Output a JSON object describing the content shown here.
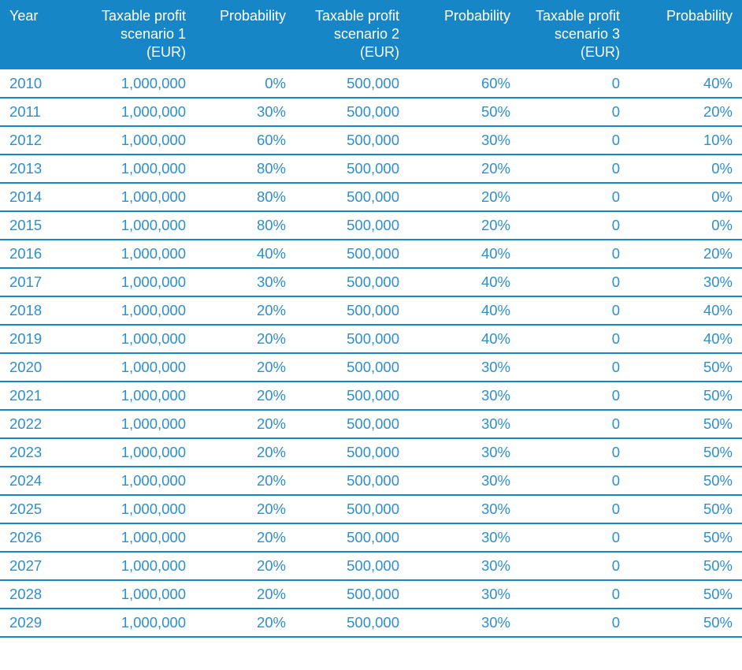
{
  "colors": {
    "header_bg": "#1786C7",
    "header_text": "#FFFFFF",
    "cell_text": "#2E8FCD",
    "row_line": "#1786C7",
    "background": "#FFFFFF"
  },
  "table": {
    "headers": [
      "Year",
      "Taxable profit\nscenario 1\n(EUR)",
      "Probability",
      "Taxable profit\nscenario 2\n(EUR)",
      "Probability",
      "Taxable profit\nscenario 3\n(EUR)",
      "Probability"
    ],
    "rows": [
      [
        "2010",
        "1,000,000",
        "0%",
        "500,000",
        "60%",
        "0",
        "40%"
      ],
      [
        "2011",
        "1,000,000",
        "30%",
        "500,000",
        "50%",
        "0",
        "20%"
      ],
      [
        "2012",
        "1,000,000",
        "60%",
        "500,000",
        "30%",
        "0",
        "10%"
      ],
      [
        "2013",
        "1,000,000",
        "80%",
        "500,000",
        "20%",
        "0",
        "0%"
      ],
      [
        "2014",
        "1,000,000",
        "80%",
        "500,000",
        "20%",
        "0",
        "0%"
      ],
      [
        "2015",
        "1,000,000",
        "80%",
        "500,000",
        "20%",
        "0",
        "0%"
      ],
      [
        "2016",
        "1,000,000",
        "40%",
        "500,000",
        "40%",
        "0",
        "20%"
      ],
      [
        "2017",
        "1,000,000",
        "30%",
        "500,000",
        "40%",
        "0",
        "30%"
      ],
      [
        "2018",
        "1,000,000",
        "20%",
        "500,000",
        "40%",
        "0",
        "40%"
      ],
      [
        "2019",
        "1,000,000",
        "20%",
        "500,000",
        "40%",
        "0",
        "40%"
      ],
      [
        "2020",
        "1,000,000",
        "20%",
        "500,000",
        "30%",
        "0",
        "50%"
      ],
      [
        "2021",
        "1,000,000",
        "20%",
        "500,000",
        "30%",
        "0",
        "50%"
      ],
      [
        "2022",
        "1,000,000",
        "20%",
        "500,000",
        "30%",
        "0",
        "50%"
      ],
      [
        "2023",
        "1,000,000",
        "20%",
        "500,000",
        "30%",
        "0",
        "50%"
      ],
      [
        "2024",
        "1,000,000",
        "20%",
        "500,000",
        "30%",
        "0",
        "50%"
      ],
      [
        "2025",
        "1,000,000",
        "20%",
        "500,000",
        "30%",
        "0",
        "50%"
      ],
      [
        "2026",
        "1,000,000",
        "20%",
        "500,000",
        "30%",
        "0",
        "50%"
      ],
      [
        "2027",
        "1,000,000",
        "20%",
        "500,000",
        "30%",
        "0",
        "50%"
      ],
      [
        "2028",
        "1,000,000",
        "20%",
        "500,000",
        "30%",
        "0",
        "50%"
      ],
      [
        "2029",
        "1,000,000",
        "20%",
        "500,000",
        "30%",
        "0",
        "50%"
      ]
    ]
  }
}
